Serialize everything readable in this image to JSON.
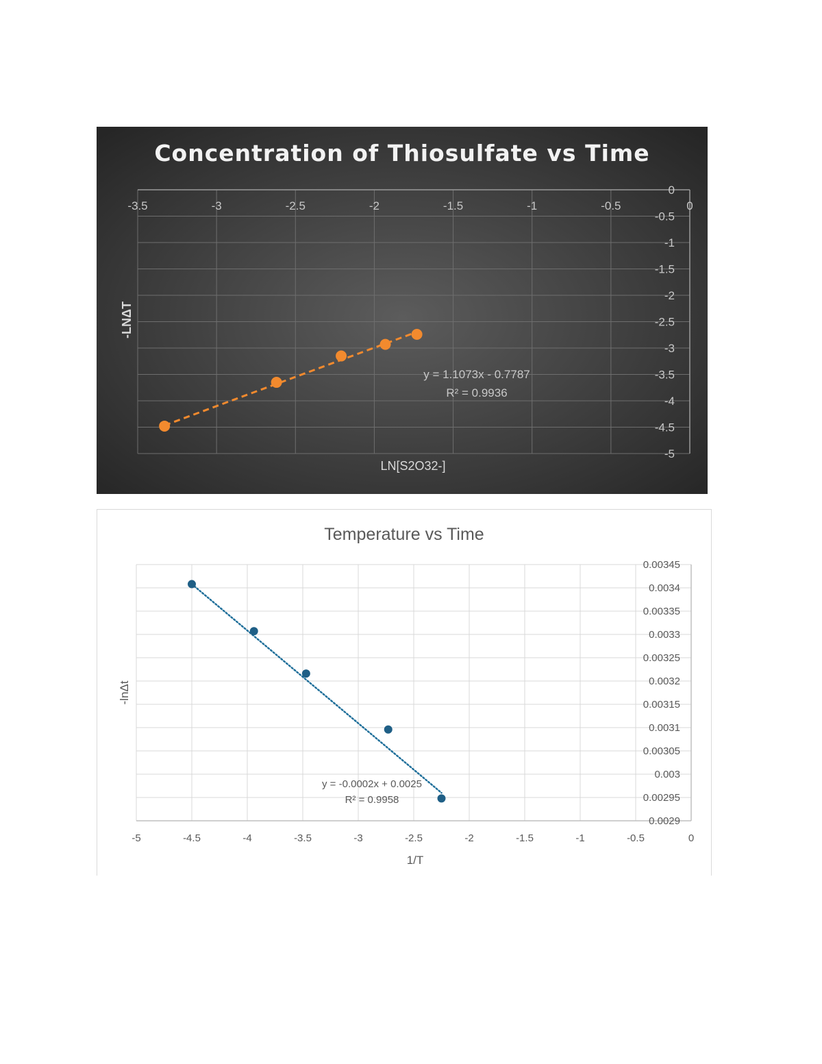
{
  "chart_data": [
    {
      "type": "scatter",
      "title": "Concentration of Thiosulfate vs Time",
      "xlabel": "LN[S2O32-]",
      "ylabel": "-LNΔT",
      "xlim": [
        -3.5,
        0
      ],
      "ylim": [
        -5,
        0
      ],
      "x_ticks": [
        "-3.5",
        "-3",
        "-2.5",
        "-2",
        "-1.5",
        "-1",
        "-0.5",
        "0"
      ],
      "y_ticks": [
        "0",
        "-0.5",
        "-1",
        "-1.5",
        "-2",
        "-2.5",
        "-3",
        "-3.5",
        "-4",
        "-4.5",
        "-5"
      ],
      "grid": true,
      "series": [
        {
          "x": [
            -3.33,
            -2.62,
            -2.21,
            -1.93,
            -1.73
          ],
          "y": [
            -4.48,
            -3.65,
            -3.15,
            -2.93,
            -2.74
          ],
          "color": "#f28a2e"
        }
      ],
      "trendline": {
        "type": "linear",
        "slope": 1.1073,
        "intercept": -0.7787,
        "x_range": [
          -3.33,
          -1.73
        ],
        "style": "dashed",
        "color": "#f28a2e",
        "equation": "y = 1.1073x - 0.7787",
        "r_squared": "R² = 0.9936"
      }
    },
    {
      "type": "scatter",
      "title": "Temperature vs Time",
      "xlabel": "1/T",
      "ylabel": "-lnΔt",
      "xlim": [
        -5,
        0
      ],
      "ylim": [
        0.0029,
        0.00345
      ],
      "x_ticks": [
        "-5",
        "-4.5",
        "-4",
        "-3.5",
        "-3",
        "-2.5",
        "-2",
        "-1.5",
        "-1",
        "-0.5",
        "0"
      ],
      "y_ticks": [
        "0.00345",
        "0.0034",
        "0.00335",
        "0.0033",
        "0.00325",
        "0.0032",
        "0.00315",
        "0.0031",
        "0.00305",
        "0.003",
        "0.00295",
        "0.0029"
      ],
      "grid": true,
      "series": [
        {
          "x": [
            -4.5,
            -3.94,
            -3.47,
            -2.73,
            -2.25
          ],
          "y": [
            0.003408,
            0.003307,
            0.003216,
            0.003096,
            0.002948
          ],
          "color": "#1f5f86"
        }
      ],
      "trendline": {
        "type": "linear",
        "x_range": [
          -4.5,
          -2.25
        ],
        "y_range": [
          0.003408,
          0.00296
        ],
        "style": "dotted",
        "color": "#1f6f9a",
        "equation": "y = -0.0002x + 0.0025",
        "r_squared": "R² = 0.9958"
      }
    }
  ]
}
